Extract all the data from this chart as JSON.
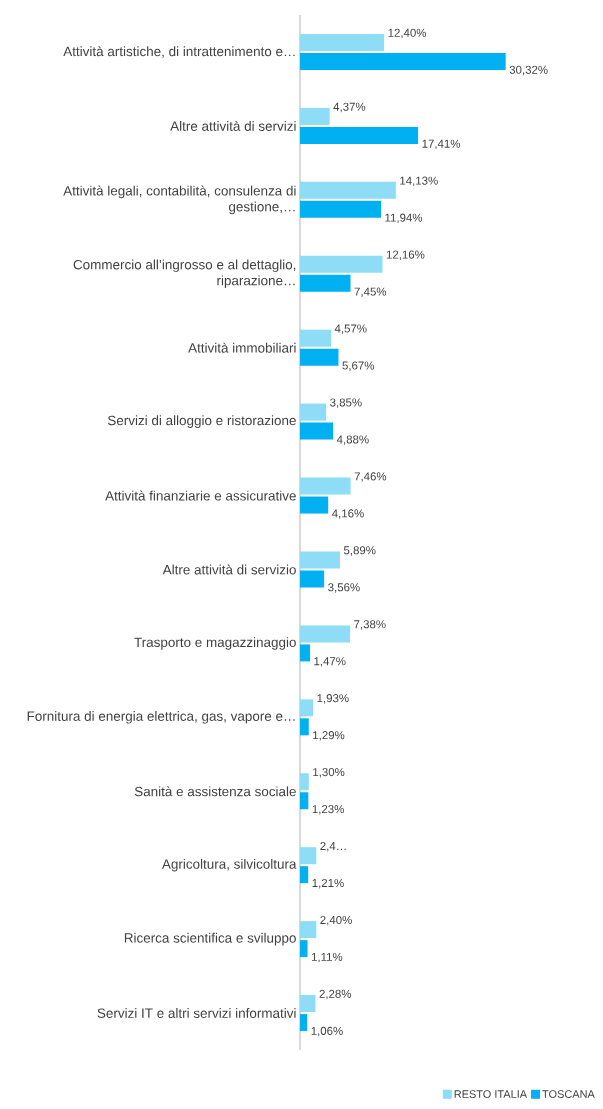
{
  "chart_data": {
    "type": "bar",
    "orientation": "horizontal",
    "legend": "bottom right",
    "tick_labels": "y",
    "categories": [
      "Attività artistiche, di intrattenimento e…",
      "Altre attività di servizi",
      "Attività legali, contabilità, consulenza di gestione,…",
      "Commercio all’ingrosso e al dettaglio, riparazione…",
      "Attività immobiliari",
      "Servizi di alloggio e ristorazione",
      "Attività finanziarie e assicurative",
      "Altre attività di servizio",
      "Trasporto e magazzinaggio",
      "Fornitura di energia elettrica, gas, vapore e…",
      "Sanità e assistenza sociale",
      "Agricoltura, silvicoltura",
      "Ricerca scientifica e sviluppo",
      "Servizi IT e altri servizi informativi"
    ],
    "series": [
      {
        "name": "RESTO ITALIA",
        "color": "#8fdcf6",
        "values": [
          12.4,
          4.37,
          14.13,
          12.16,
          4.57,
          3.85,
          7.46,
          5.89,
          7.38,
          1.93,
          1.3,
          2.4,
          2.4,
          2.28
        ],
        "value_labels": [
          "12,40%",
          "4,37%",
          "14,13%",
          "12,16%",
          "4,57%",
          "3,85%",
          "7,46%",
          "5,89%",
          "7,38%",
          "1,93%",
          "1,30%",
          "2,4…",
          "2,40%",
          "2,28%"
        ]
      },
      {
        "name": "TOSCANA",
        "color": "#00b0f0",
        "values": [
          30.32,
          17.41,
          11.94,
          7.45,
          5.67,
          4.88,
          4.16,
          3.56,
          1.47,
          1.29,
          1.23,
          1.21,
          1.11,
          1.06
        ],
        "value_labels": [
          "30,32%",
          "17,41%",
          "11,94%",
          "7,45%",
          "5,67%",
          "4,88%",
          "4,16%",
          "3,56%",
          "1,47%",
          "1,29%",
          "1,23%",
          "1,21%",
          "1,11%",
          "1,06%"
        ]
      }
    ]
  }
}
